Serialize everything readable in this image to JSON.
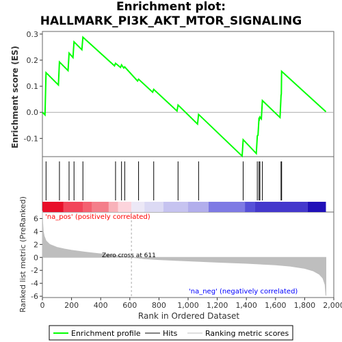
{
  "chart_data": {
    "type": "line",
    "title_line1": "Enrichment plot:",
    "title_line2": "HALLMARK_PI3K_AKT_MTOR_SIGNALING",
    "es_panel": {
      "ylabel": "Enrichment score (ES)",
      "yticks": [
        -0.1,
        0.0,
        0.1,
        0.2,
        0.3
      ],
      "ytick_labels": [
        "-0.1",
        "0.0",
        "0.1",
        "0.2",
        "0.3"
      ],
      "ylim": [
        -0.17,
        0.31
      ],
      "line_color": "#00ff00"
    },
    "metric_panel": {
      "ylabel": "Ranked list metric (PreRanked)",
      "xlabel": "Rank in Ordered Dataset",
      "yticks": [
        -6,
        -4,
        -2,
        0,
        2,
        4,
        6
      ],
      "ytick_labels": [
        "-6",
        "-4",
        "-2",
        "0",
        "2",
        "4",
        "6"
      ],
      "ylim": [
        -6.2,
        7
      ],
      "xticks": [
        0,
        200,
        400,
        600,
        800,
        1000,
        1200,
        1400,
        1600,
        1800,
        2000
      ],
      "xtick_labels": [
        "0",
        "200",
        "400",
        "600",
        "800",
        "1,000",
        "1,200",
        "1,400",
        "1,600",
        "1,800",
        "2,000"
      ],
      "pos_label": "'na_pos' (positively correlated)",
      "neg_label": "'na_neg' (negatively correlated)",
      "zero_cross_label": "Zero cross at 611",
      "zero_cross": 611,
      "fill_color": "#bebebe"
    },
    "xlim": [
      0,
      2000
    ],
    "n_genes": 1946,
    "hits": [
      25,
      117,
      183,
      217,
      278,
      502,
      543,
      565,
      660,
      764,
      931,
      1072,
      1378,
      1475,
      1487,
      1493,
      1510,
      1638,
      1642
    ],
    "es_points": [
      [
        0,
        0.0
      ],
      [
        18,
        -0.01
      ],
      [
        25,
        0.152
      ],
      [
        110,
        0.105
      ],
      [
        117,
        0.193
      ],
      [
        176,
        0.16
      ],
      [
        183,
        0.227
      ],
      [
        210,
        0.21
      ],
      [
        217,
        0.27
      ],
      [
        271,
        0.24
      ],
      [
        278,
        0.288
      ],
      [
        495,
        0.178
      ],
      [
        502,
        0.188
      ],
      [
        536,
        0.172
      ],
      [
        543,
        0.182
      ],
      [
        558,
        0.17
      ],
      [
        565,
        0.174
      ],
      [
        653,
        0.12
      ],
      [
        660,
        0.127
      ],
      [
        757,
        0.077
      ],
      [
        764,
        0.088
      ],
      [
        924,
        0.005
      ],
      [
        931,
        0.028
      ],
      [
        1065,
        -0.045
      ],
      [
        1072,
        -0.008
      ],
      [
        1371,
        -0.168
      ],
      [
        1378,
        -0.105
      ],
      [
        1468,
        -0.158
      ],
      [
        1475,
        -0.09
      ],
      [
        1480,
        -0.088
      ],
      [
        1487,
        -0.02
      ],
      [
        1490,
        -0.025
      ],
      [
        1493,
        -0.018
      ],
      [
        1503,
        -0.025
      ],
      [
        1510,
        0.045
      ],
      [
        1631,
        -0.02
      ],
      [
        1638,
        0.065
      ],
      [
        1640,
        0.07
      ],
      [
        1642,
        0.157
      ],
      [
        1946,
        0.002
      ]
    ],
    "metric_profile": [
      [
        0,
        7.2
      ],
      [
        2,
        5.4
      ],
      [
        6,
        4.0
      ],
      [
        12,
        3.3
      ],
      [
        25,
        2.55
      ],
      [
        50,
        2.0
      ],
      [
        100,
        1.55
      ],
      [
        150,
        1.3
      ],
      [
        200,
        1.1
      ],
      [
        300,
        0.8
      ],
      [
        400,
        0.55
      ],
      [
        500,
        0.3
      ],
      [
        611,
        0.0
      ],
      [
        700,
        -0.2
      ],
      [
        800,
        -0.35
      ],
      [
        1000,
        -0.55
      ],
      [
        1200,
        -0.75
      ],
      [
        1400,
        -0.92
      ],
      [
        1600,
        -1.15
      ],
      [
        1700,
        -1.35
      ],
      [
        1800,
        -1.7
      ],
      [
        1860,
        -2.1
      ],
      [
        1900,
        -2.6
      ],
      [
        1925,
        -3.2
      ],
      [
        1940,
        -4.2
      ],
      [
        1946,
        -5.9
      ]
    ],
    "heatmap_segments": [
      {
        "x0": 0,
        "x1": 145,
        "color": "#e8102a"
      },
      {
        "x0": 145,
        "x1": 280,
        "color": "#f2455a"
      },
      {
        "x0": 280,
        "x1": 340,
        "color": "#f46070"
      },
      {
        "x0": 340,
        "x1": 455,
        "color": "#f47e8a"
      },
      {
        "x0": 455,
        "x1": 520,
        "color": "#f8b2ba"
      },
      {
        "x0": 520,
        "x1": 611,
        "color": "#fcd4dc"
      },
      {
        "x0": 611,
        "x1": 700,
        "color": "#ece8f6"
      },
      {
        "x0": 700,
        "x1": 830,
        "color": "#dcdaf4"
      },
      {
        "x0": 830,
        "x1": 1000,
        "color": "#c6c3f0"
      },
      {
        "x0": 1000,
        "x1": 1140,
        "color": "#b2aeec"
      },
      {
        "x0": 1140,
        "x1": 1390,
        "color": "#7e7ae4"
      },
      {
        "x0": 1390,
        "x1": 1460,
        "color": "#5650d8"
      },
      {
        "x0": 1460,
        "x1": 1820,
        "color": "#4438cc"
      },
      {
        "x0": 1820,
        "x1": 1946,
        "color": "#2010b8"
      }
    ],
    "legend": [
      {
        "label": "Enrichment profile",
        "color": "#00ff00"
      },
      {
        "label": "Hits",
        "color": "#000000"
      },
      {
        "label": "Ranking metric scores",
        "color": "#bebebe"
      }
    ]
  }
}
